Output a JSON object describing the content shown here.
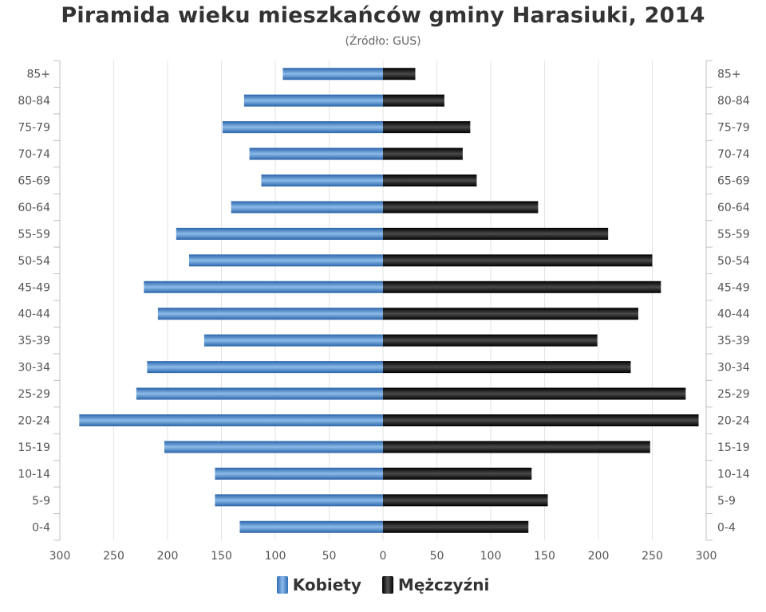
{
  "title": "Piramida wieku mieszkańców gminy Harasiuki, 2014",
  "subtitle": "(Źródło: GUS)",
  "colors": {
    "female": "#3b7dc6",
    "male": "#111111",
    "grid": "#e3e3e3"
  },
  "chart_data": {
    "type": "bar",
    "orientation": "horizontal-population-pyramid",
    "title": "Piramida wieku mieszkańców gminy Harasiuki, 2014",
    "subtitle": "(Źródło: GUS)",
    "categories": [
      "85+",
      "80-84",
      "75-79",
      "70-74",
      "65-69",
      "60-64",
      "55-59",
      "50-54",
      "45-49",
      "40-44",
      "35-39",
      "30-34",
      "25-29",
      "20-24",
      "15-19",
      "10-14",
      "5-9",
      "0-4"
    ],
    "series": [
      {
        "name": "Kobiety",
        "values": [
          93,
          129,
          149,
          124,
          113,
          141,
          192,
          180,
          222,
          209,
          166,
          219,
          229,
          282,
          203,
          156,
          156,
          133
        ]
      },
      {
        "name": "Mężczyźni",
        "values": [
          30,
          57,
          81,
          74,
          87,
          144,
          209,
          250,
          258,
          237,
          199,
          230,
          281,
          293,
          248,
          138,
          153,
          135
        ]
      }
    ],
    "x_ticks": [
      "300",
      "250",
      "200",
      "150",
      "100",
      "50",
      "0",
      "50",
      "100",
      "150",
      "200",
      "250",
      "300"
    ],
    "xlim": [
      -300,
      300
    ],
    "grid": true,
    "legend_position": "bottom-center"
  }
}
